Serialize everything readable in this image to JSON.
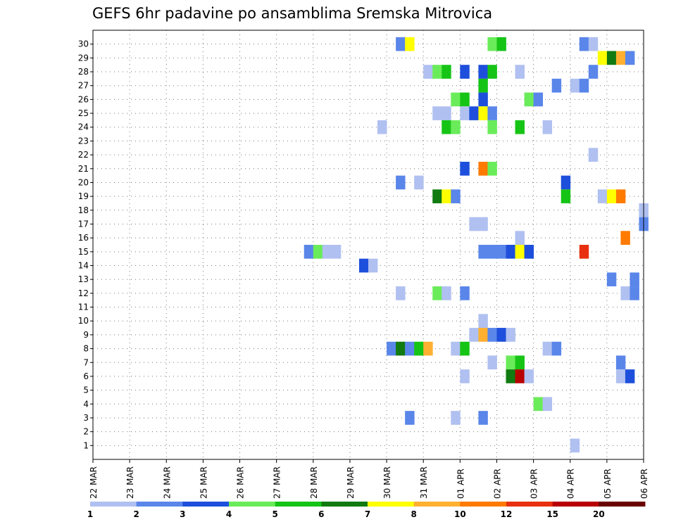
{
  "chart_data": {
    "type": "heatmap",
    "title": "GEFS 6hr padavine po ansamblima Sremska Mitrovica",
    "xlabel": "",
    "ylabel": "",
    "x_tick_labels": [
      "22 MAR",
      "23 MAR",
      "24 MAR",
      "25 MAR",
      "26 MAR",
      "27 MAR",
      "28 MAR",
      "29 MAR",
      "30 MAR",
      "31 MAR",
      "01 APR",
      "02 APR",
      "03 APR",
      "04 APR",
      "05 APR",
      "06 APR"
    ],
    "x_range_days": [
      0,
      15
    ],
    "step_hours": 6,
    "y_tick_labels": [
      "1",
      "2",
      "3",
      "4",
      "5",
      "6",
      "7",
      "8",
      "9",
      "10",
      "11",
      "12",
      "13",
      "14",
      "15",
      "16",
      "17",
      "18",
      "19",
      "20",
      "21",
      "22",
      "23",
      "24",
      "25",
      "26",
      "27",
      "28",
      "29",
      "30"
    ],
    "y_range": [
      0,
      30
    ],
    "grid": true,
    "colorbar": {
      "labels": [
        "1",
        "2",
        "3",
        "4",
        "5",
        "6",
        "7",
        "8",
        "10",
        "12",
        "15",
        "20"
      ],
      "colors": [
        "#b0c0f0",
        "#5a86ea",
        "#1e4fdc",
        "#6aec5a",
        "#16c416",
        "#117a11",
        "#ffff00",
        "#ffb030",
        "#ff7a00",
        "#e83010",
        "#b80000",
        "#6a0000"
      ]
    },
    "cells": [
      {
        "member": 30,
        "day": 8.25,
        "cls": 1
      },
      {
        "member": 30,
        "day": 8.5,
        "cls": 6
      },
      {
        "member": 30,
        "day": 10.75,
        "cls": 3
      },
      {
        "member": 30,
        "day": 11,
        "cls": 4
      },
      {
        "member": 30,
        "day": 13.25,
        "cls": 1
      },
      {
        "member": 30,
        "day": 13.5,
        "cls": 0
      },
      {
        "member": 29,
        "day": 13.75,
        "cls": 6
      },
      {
        "member": 29,
        "day": 14,
        "cls": 5
      },
      {
        "member": 29,
        "day": 14.25,
        "cls": 7
      },
      {
        "member": 29,
        "day": 14.5,
        "cls": 1
      },
      {
        "member": 28,
        "day": 9,
        "cls": 0
      },
      {
        "member": 28,
        "day": 9.25,
        "cls": 3
      },
      {
        "member": 28,
        "day": 9.5,
        "cls": 4
      },
      {
        "member": 28,
        "day": 10,
        "cls": 2
      },
      {
        "member": 28,
        "day": 10.5,
        "cls": 2
      },
      {
        "member": 28,
        "day": 10.75,
        "cls": 4
      },
      {
        "member": 28,
        "day": 11.5,
        "cls": 0
      },
      {
        "member": 28,
        "day": 13.5,
        "cls": 1
      },
      {
        "member": 27,
        "day": 10.5,
        "cls": 4
      },
      {
        "member": 27,
        "day": 12.5,
        "cls": 1
      },
      {
        "member": 27,
        "day": 13,
        "cls": 0
      },
      {
        "member": 27,
        "day": 13.25,
        "cls": 1
      },
      {
        "member": 26,
        "day": 9.75,
        "cls": 3
      },
      {
        "member": 26,
        "day": 10,
        "cls": 4
      },
      {
        "member": 26,
        "day": 10.5,
        "cls": 2
      },
      {
        "member": 26,
        "day": 11.75,
        "cls": 3
      },
      {
        "member": 26,
        "day": 12,
        "cls": 1
      },
      {
        "member": 25,
        "day": 9.25,
        "cls": 0
      },
      {
        "member": 25,
        "day": 9.5,
        "cls": 0
      },
      {
        "member": 25,
        "day": 10,
        "cls": 0
      },
      {
        "member": 25,
        "day": 10.25,
        "cls": 2
      },
      {
        "member": 25,
        "day": 10.5,
        "cls": 6
      },
      {
        "member": 25,
        "day": 10.75,
        "cls": 1
      },
      {
        "member": 24,
        "day": 7.75,
        "cls": 0
      },
      {
        "member": 24,
        "day": 9.5,
        "cls": 4
      },
      {
        "member": 24,
        "day": 9.75,
        "cls": 3
      },
      {
        "member": 24,
        "day": 10.75,
        "cls": 3
      },
      {
        "member": 24,
        "day": 11.5,
        "cls": 4
      },
      {
        "member": 24,
        "day": 12.25,
        "cls": 0
      },
      {
        "member": 22,
        "day": 13.5,
        "cls": 0
      },
      {
        "member": 21,
        "day": 10,
        "cls": 2
      },
      {
        "member": 21,
        "day": 10.5,
        "cls": 8
      },
      {
        "member": 21,
        "day": 10.75,
        "cls": 3
      },
      {
        "member": 20,
        "day": 8.25,
        "cls": 1
      },
      {
        "member": 20,
        "day": 8.75,
        "cls": 0
      },
      {
        "member": 20,
        "day": 12.75,
        "cls": 2
      },
      {
        "member": 19,
        "day": 9.25,
        "cls": 5
      },
      {
        "member": 19,
        "day": 9.5,
        "cls": 6
      },
      {
        "member": 19,
        "day": 9.75,
        "cls": 1
      },
      {
        "member": 19,
        "day": 12.75,
        "cls": 4
      },
      {
        "member": 19,
        "day": 13.75,
        "cls": 0
      },
      {
        "member": 19,
        "day": 14,
        "cls": 6
      },
      {
        "member": 19,
        "day": 14.25,
        "cls": 8
      },
      {
        "member": 18,
        "day": 14.875,
        "cls": 0
      },
      {
        "member": 17,
        "day": 10.25,
        "cls": 0
      },
      {
        "member": 17,
        "day": 10.5,
        "cls": 0
      },
      {
        "member": 17,
        "day": 14.875,
        "cls": 1
      },
      {
        "member": 16,
        "day": 11.5,
        "cls": 0
      },
      {
        "member": 16,
        "day": 14.375,
        "cls": 8
      },
      {
        "member": 15,
        "day": 5.75,
        "cls": 1
      },
      {
        "member": 15,
        "day": 6,
        "cls": 3
      },
      {
        "member": 15,
        "day": 6.25,
        "cls": 0
      },
      {
        "member": 15,
        "day": 6.5,
        "cls": 0
      },
      {
        "member": 15,
        "day": 10.5,
        "cls": 1
      },
      {
        "member": 15,
        "day": 10.75,
        "cls": 1
      },
      {
        "member": 15,
        "day": 11,
        "cls": 1
      },
      {
        "member": 15,
        "day": 11.25,
        "cls": 2
      },
      {
        "member": 15,
        "day": 11.5,
        "cls": 6
      },
      {
        "member": 15,
        "day": 11.75,
        "cls": 2
      },
      {
        "member": 15,
        "day": 13.25,
        "cls": 9
      },
      {
        "member": 14,
        "day": 7.25,
        "cls": 2
      },
      {
        "member": 14,
        "day": 7.5,
        "cls": 0
      },
      {
        "member": 13,
        "day": 14,
        "cls": 1
      },
      {
        "member": 13,
        "day": 14.625,
        "cls": 1
      },
      {
        "member": 12,
        "day": 8.25,
        "cls": 0
      },
      {
        "member": 12,
        "day": 9.25,
        "cls": 3
      },
      {
        "member": 12,
        "day": 9.5,
        "cls": 0
      },
      {
        "member": 12,
        "day": 10,
        "cls": 1
      },
      {
        "member": 12,
        "day": 14.375,
        "cls": 0
      },
      {
        "member": 12,
        "day": 14.625,
        "cls": 1
      },
      {
        "member": 10,
        "day": 10.5,
        "cls": 0
      },
      {
        "member": 9,
        "day": 10.25,
        "cls": 0
      },
      {
        "member": 9,
        "day": 10.5,
        "cls": 7
      },
      {
        "member": 9,
        "day": 10.75,
        "cls": 1
      },
      {
        "member": 9,
        "day": 11,
        "cls": 2
      },
      {
        "member": 9,
        "day": 11.25,
        "cls": 0
      },
      {
        "member": 8,
        "day": 8,
        "cls": 1
      },
      {
        "member": 8,
        "day": 8.25,
        "cls": 5
      },
      {
        "member": 8,
        "day": 8.5,
        "cls": 1
      },
      {
        "member": 8,
        "day": 8.75,
        "cls": 4
      },
      {
        "member": 8,
        "day": 9,
        "cls": 7
      },
      {
        "member": 8,
        "day": 9.75,
        "cls": 0
      },
      {
        "member": 8,
        "day": 10,
        "cls": 4
      },
      {
        "member": 8,
        "day": 12.25,
        "cls": 0
      },
      {
        "member": 8,
        "day": 12.5,
        "cls": 1
      },
      {
        "member": 7,
        "day": 10.75,
        "cls": 0
      },
      {
        "member": 7,
        "day": 11.25,
        "cls": 3
      },
      {
        "member": 7,
        "day": 11.5,
        "cls": 4
      },
      {
        "member": 7,
        "day": 14.25,
        "cls": 1
      },
      {
        "member": 6,
        "day": 10,
        "cls": 0
      },
      {
        "member": 6,
        "day": 11.25,
        "cls": 5
      },
      {
        "member": 6,
        "day": 11.5,
        "cls": 10
      },
      {
        "member": 6,
        "day": 11.75,
        "cls": 0
      },
      {
        "member": 6,
        "day": 14.25,
        "cls": 0
      },
      {
        "member": 6,
        "day": 14.5,
        "cls": 2
      },
      {
        "member": 4,
        "day": 12,
        "cls": 3
      },
      {
        "member": 4,
        "day": 12.25,
        "cls": 0
      },
      {
        "member": 3,
        "day": 8.5,
        "cls": 1
      },
      {
        "member": 3,
        "day": 9.75,
        "cls": 0
      },
      {
        "member": 3,
        "day": 10.5,
        "cls": 1
      },
      {
        "member": 1,
        "day": 13,
        "cls": 0
      }
    ]
  }
}
